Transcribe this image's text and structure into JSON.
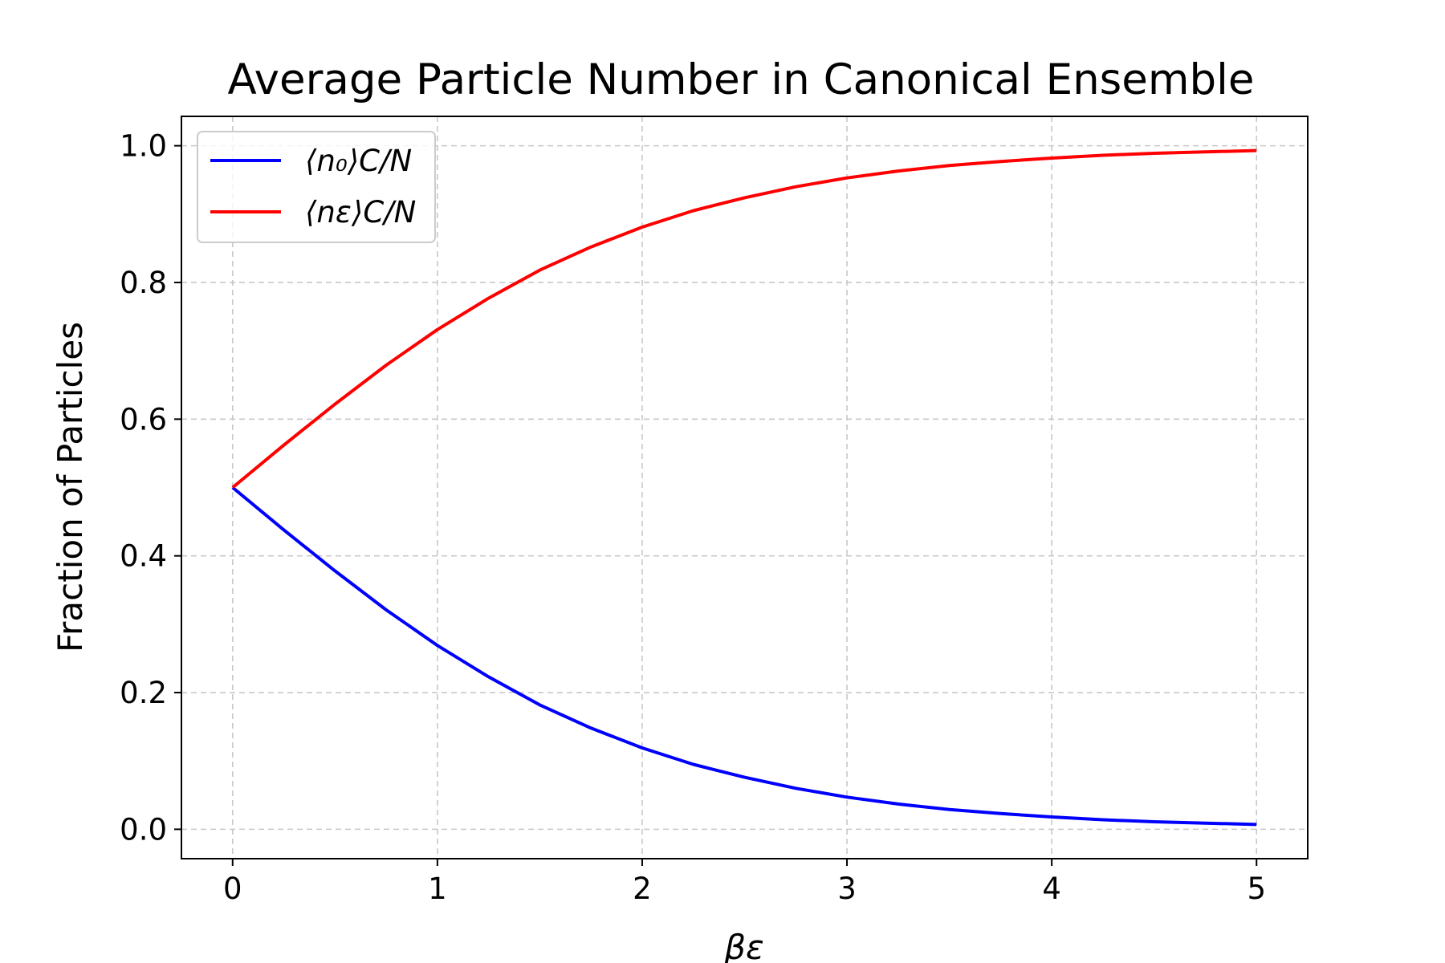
{
  "chart_data": {
    "type": "line",
    "title": "Average Particle Number in Canonical Ensemble",
    "xlabel": "βε",
    "ylabel": "Fraction of Particles",
    "xlim": [
      -0.25,
      5.25
    ],
    "ylim": [
      -0.043,
      1.043
    ],
    "xticks": [
      "0",
      "1",
      "2",
      "3",
      "4",
      "5"
    ],
    "yticks": [
      "0.0",
      "0.2",
      "0.4",
      "0.6",
      "0.8",
      "1.0"
    ],
    "grid": true,
    "legend_position": "top-left",
    "x": [
      0,
      0.25,
      0.5,
      0.75,
      1,
      1.25,
      1.5,
      1.75,
      2,
      2.25,
      2.5,
      2.75,
      3,
      3.25,
      3.5,
      3.75,
      4,
      4.25,
      4.5,
      4.75,
      5
    ],
    "series": [
      {
        "name": "⟨n₀⟩C/N",
        "color": "#0000ff",
        "values": [
          0.5,
          0.438,
          0.378,
          0.321,
          0.269,
          0.223,
          0.182,
          0.148,
          0.119,
          0.095,
          0.076,
          0.06,
          0.047,
          0.037,
          0.029,
          0.023,
          0.018,
          0.014,
          0.011,
          0.009,
          0.007
        ]
      },
      {
        "name": "⟨nε⟩C/N",
        "color": "#ff0000",
        "values": [
          0.5,
          0.562,
          0.622,
          0.679,
          0.731,
          0.777,
          0.818,
          0.852,
          0.881,
          0.905,
          0.924,
          0.94,
          0.953,
          0.963,
          0.971,
          0.977,
          0.982,
          0.986,
          0.989,
          0.991,
          0.993
        ]
      }
    ]
  }
}
